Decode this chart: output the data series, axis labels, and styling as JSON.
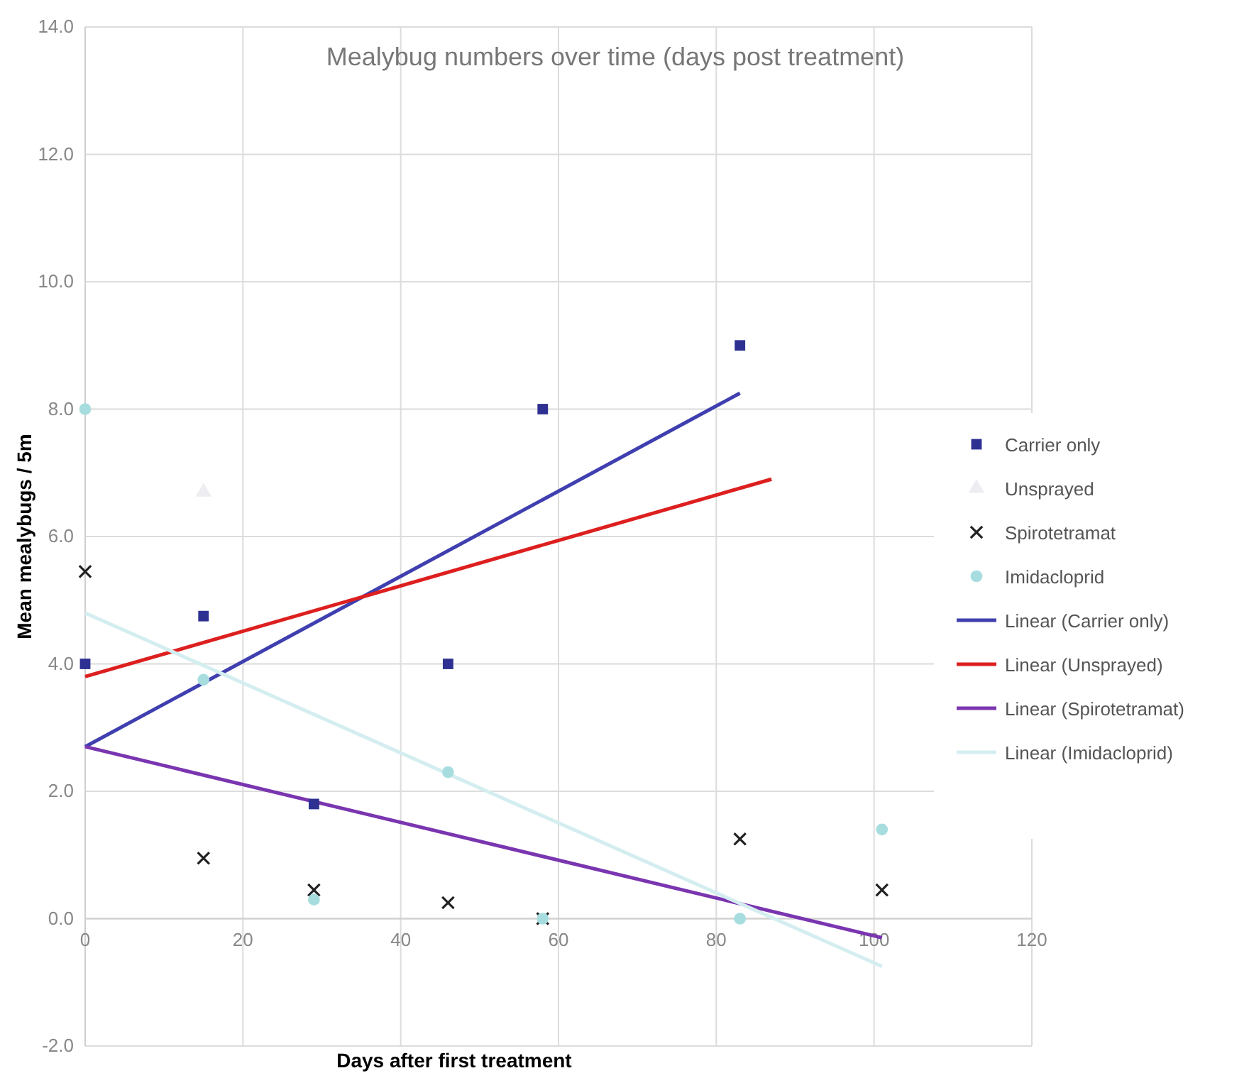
{
  "chart_data": {
    "type": "scatter",
    "title": "Mealybug numbers over time (days post treatment)",
    "xlabel": "Days after first treatment",
    "ylabel": "Mean mealybugs / 5m",
    "xlim": [
      0,
      120
    ],
    "xticks": [
      0,
      20,
      40,
      60,
      80,
      100,
      120
    ],
    "ylim": [
      -2,
      14
    ],
    "yticks": [
      {
        "value": -2,
        "label": "-2.0"
      },
      {
        "value": 0,
        "label": "0.0"
      },
      {
        "value": 2,
        "label": "2.0"
      },
      {
        "value": 4,
        "label": "4.0"
      },
      {
        "value": 6,
        "label": "6.0"
      },
      {
        "value": 8,
        "label": "8.0"
      },
      {
        "value": 10,
        "label": "10.0"
      },
      {
        "value": 12,
        "label": "12.0"
      },
      {
        "value": 14,
        "label": "14.0"
      }
    ],
    "grid": true,
    "legend": "right",
    "series": [
      {
        "name": "Carrier only",
        "marker": "square",
        "color": "#2e3192",
        "x": [
          0,
          15,
          29,
          46,
          58,
          83
        ],
        "values": [
          4.0,
          4.75,
          1.8,
          4.0,
          8.0,
          9.0
        ]
      },
      {
        "name": "Unsprayed",
        "marker": "triangle",
        "color": "#eeeef2",
        "x": [
          15
        ],
        "values": [
          6.7
        ]
      },
      {
        "name": "Spirotetramat",
        "marker": "cross",
        "color": "#222222",
        "x": [
          0,
          15,
          29,
          46,
          58,
          83,
          101
        ],
        "values": [
          5.45,
          0.95,
          0.45,
          0.25,
          0.0,
          1.25,
          0.45
        ]
      },
      {
        "name": "Imidacloprid",
        "marker": "circle",
        "color": "#a8dde0",
        "x": [
          0,
          15,
          29,
          46,
          58,
          83,
          101
        ],
        "values": [
          8.0,
          3.75,
          0.3,
          2.3,
          0.0,
          0.0,
          1.4
        ]
      },
      {
        "name": "Linear (Carrier only)",
        "type": "line",
        "color": "#3f3fb0",
        "x": [
          0,
          83
        ],
        "values": [
          2.7,
          8.25
        ]
      },
      {
        "name": "Linear (Unsprayed)",
        "type": "line",
        "color": "#dd1f1f",
        "x": [
          0,
          87
        ],
        "values": [
          3.8,
          6.9
        ]
      },
      {
        "name": "Linear (Spirotetramat)",
        "type": "line",
        "color": "#7a35b0",
        "x": [
          0,
          101
        ],
        "values": [
          2.7,
          -0.3
        ]
      },
      {
        "name": "Linear (Imidacloprid)",
        "type": "line",
        "color": "#d4eef0",
        "x": [
          0,
          101
        ],
        "values": [
          4.8,
          -0.75
        ]
      }
    ]
  }
}
